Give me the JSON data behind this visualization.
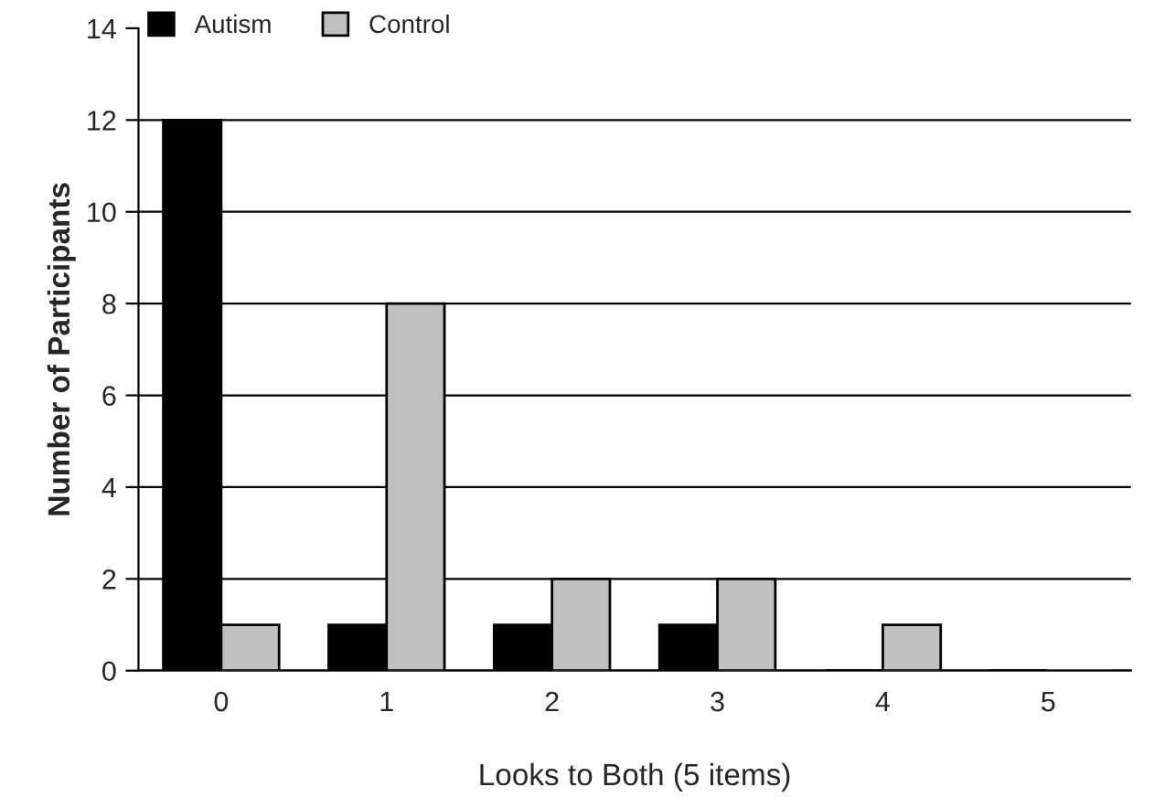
{
  "chart_data": {
    "type": "bar",
    "xlabel": "Looks to Both (5 items)",
    "ylabel": "Number of Participants",
    "categories": [
      "0",
      "1",
      "2",
      "3",
      "4",
      "5"
    ],
    "series": [
      {
        "name": "Autism",
        "color": "#000000",
        "values": [
          12,
          1,
          1,
          1,
          0,
          0
        ]
      },
      {
        "name": "Control",
        "color": "#c0c0c0",
        "values": [
          1,
          8,
          2,
          2,
          1,
          0
        ]
      }
    ],
    "ylim": [
      0,
      14
    ],
    "yticks": [
      0,
      2,
      4,
      6,
      8,
      10,
      12,
      14
    ],
    "grid": "y",
    "legend": "top left"
  }
}
